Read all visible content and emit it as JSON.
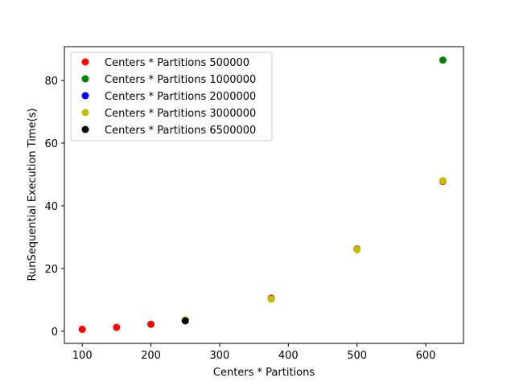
{
  "chart_data": {
    "type": "scatter",
    "title": "",
    "xlabel": "Centers * Partitions",
    "ylabel": "RunSequential Execution Time(s)",
    "xlim": [
      74,
      655
    ],
    "ylim": [
      -3.9,
      90.8
    ],
    "xticks": [
      100,
      200,
      300,
      400,
      500,
      600
    ],
    "yticks": [
      0,
      20,
      40,
      60,
      80
    ],
    "grid": false,
    "legend_position": "top-left",
    "series": [
      {
        "name": "Centers * Partitions 500000",
        "color": "#ff0000",
        "points": [
          [
            100,
            0.6
          ],
          [
            150,
            1.2
          ],
          [
            200,
            2.2
          ],
          [
            250,
            3.5
          ],
          [
            375,
            10.5
          ],
          [
            500,
            26.2
          ],
          [
            625,
            47.8
          ]
        ]
      },
      {
        "name": "Centers * Partitions 1000000",
        "color": "#008000",
        "points": [
          [
            625,
            86.5
          ]
        ]
      },
      {
        "name": "Centers * Partitions 2000000",
        "color": "#0000ff",
        "points": []
      },
      {
        "name": "Centers * Partitions 3000000",
        "color": "#bfbf00",
        "points": [
          [
            250,
            3.6
          ],
          [
            375,
            10.2
          ],
          [
            500,
            26.0
          ],
          [
            625,
            48.0
          ]
        ]
      },
      {
        "name": "Centers * Partitions 6500000",
        "color": "#000000",
        "points": [
          [
            250,
            3.3
          ]
        ]
      }
    ]
  }
}
